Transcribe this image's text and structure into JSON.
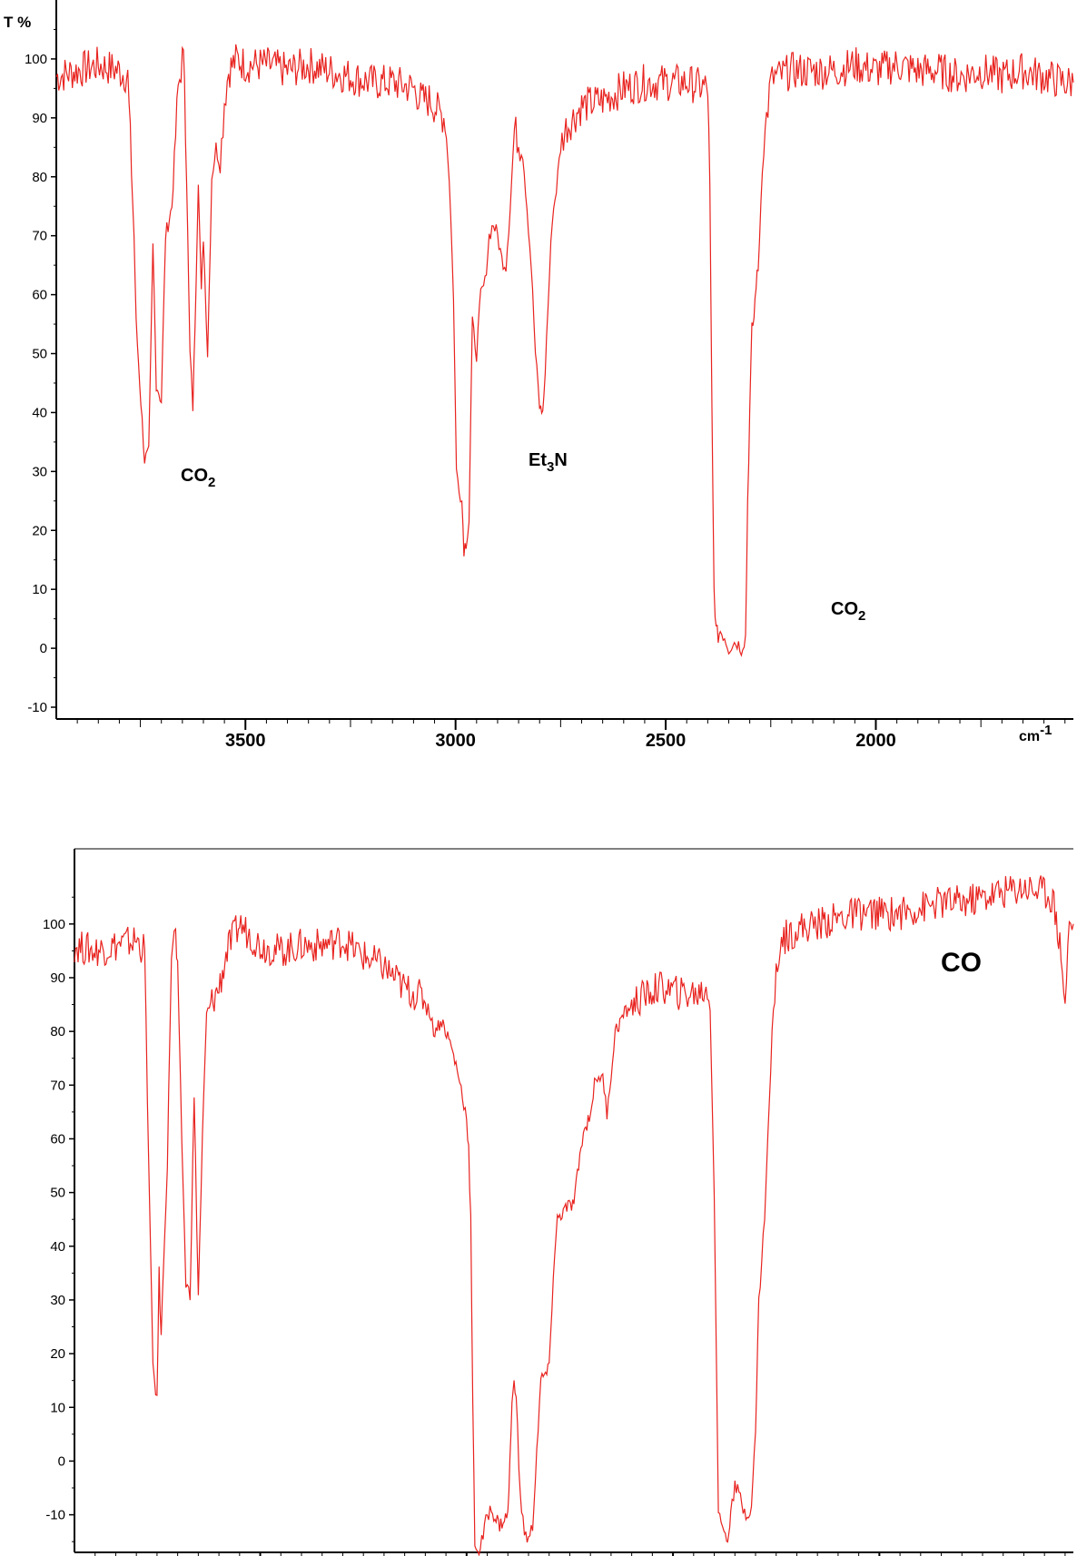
{
  "colors": {
    "trace": "#e8231f",
    "axis": "#000000",
    "background": "#ffffff"
  },
  "chart_data": [
    {
      "type": "line",
      "title": "",
      "ylabel": "T %",
      "xlabel": "cm-1",
      "x_reversed": true,
      "xlim": [
        3950,
        1530
      ],
      "ylim": [
        -12,
        110
      ],
      "xticks": [
        3500,
        3000,
        2500,
        2000
      ],
      "yticks": [
        -10,
        0,
        10,
        20,
        30,
        40,
        50,
        60,
        70,
        80,
        90,
        100
      ],
      "grid": false,
      "annotations": [
        {
          "text": "CO",
          "sub": "2",
          "x": 3710,
          "y": 29
        },
        {
          "text": "Et",
          "sub": "3",
          "after": "N",
          "x": 2920,
          "y": 31
        },
        {
          "text": "CO",
          "sub": "2",
          "x": 2230,
          "y": 6
        }
      ],
      "series": [
        {
          "x": [
            3950,
            3900,
            3850,
            3800,
            3780,
            3765,
            3760,
            3740,
            3730,
            3720,
            3712,
            3700,
            3690,
            3675,
            3660,
            3650,
            3645,
            3640,
            3632,
            3625,
            3620,
            3612,
            3605,
            3600,
            3590,
            3580,
            3570,
            3560,
            3550,
            3540,
            3520,
            3500,
            3450,
            3400,
            3350,
            3300,
            3250,
            3200,
            3150,
            3100,
            3080,
            3060,
            3040,
            3025,
            3015,
            3005,
            2998,
            2985,
            2980,
            2975,
            2968,
            2960,
            2950,
            2940,
            2930,
            2920,
            2910,
            2900,
            2890,
            2880,
            2870,
            2860,
            2850,
            2840,
            2830,
            2820,
            2810,
            2800,
            2795,
            2790,
            2780,
            2770,
            2760,
            2750,
            2740,
            2720,
            2700,
            2650,
            2600,
            2550,
            2500,
            2450,
            2400,
            2395,
            2390,
            2385,
            2380,
            2375,
            2370,
            2360,
            2350,
            2340,
            2330,
            2320,
            2310,
            2305,
            2300,
            2295,
            2290,
            2285,
            2280,
            2270,
            2260,
            2250,
            2240,
            2230,
            2200,
            2150,
            2100,
            2050,
            2000,
            1950,
            1900,
            1850,
            1800,
            1750,
            1700,
            1650,
            1600,
            1550,
            1530
          ],
          "y": [
            97,
            98,
            99,
            98,
            97,
            70,
            55,
            32,
            33,
            68,
            45,
            42,
            70,
            75,
            95,
            100,
            98,
            80,
            50,
            41,
            55,
            80,
            60,
            70,
            50,
            80,
            85,
            82,
            93,
            98,
            100,
            99,
            99,
            98,
            99,
            98,
            97,
            96,
            96,
            95,
            93,
            93,
            91,
            90,
            80,
            60,
            30,
            25,
            17,
            18,
            22,
            55,
            50,
            60,
            62,
            70,
            72,
            70,
            66,
            65,
            75,
            88,
            86,
            84,
            75,
            65,
            50,
            41,
            40,
            42,
            58,
            73,
            78,
            85,
            88,
            90,
            92,
            93,
            95,
            96,
            96,
            96,
            95,
            78,
            40,
            10,
            3,
            2,
            3,
            2,
            0,
            1,
            1,
            0,
            2,
            25,
            40,
            54,
            56,
            62,
            64,
            82,
            90,
            96,
            97,
            97,
            98,
            98,
            98,
            99,
            98,
            99,
            98,
            98,
            97,
            98,
            97,
            98,
            97,
            96,
            96
          ]
        }
      ]
    },
    {
      "type": "line",
      "title": "",
      "x_reversed": true,
      "xlim": [
        3950,
        1530
      ],
      "ylim": [
        -17,
        114
      ],
      "yticks": [
        -10,
        0,
        10,
        20,
        30,
        40,
        50,
        60,
        70,
        80,
        90,
        100
      ],
      "grid": false,
      "annotations": [
        {
          "text": "CO",
          "x": 1950,
          "y": 91
        }
      ],
      "series": [
        {
          "x": [
            3950,
            3900,
            3850,
            3800,
            3780,
            3770,
            3760,
            3750,
            3745,
            3740,
            3732,
            3725,
            3715,
            3705,
            3700,
            3690,
            3680,
            3670,
            3660,
            3650,
            3640,
            3630,
            3620,
            3600,
            3580,
            3550,
            3500,
            3450,
            3400,
            3350,
            3300,
            3250,
            3200,
            3150,
            3100,
            3090,
            3080,
            3060,
            3040,
            3020,
            3010,
            3000,
            2995,
            2990,
            2985,
            2980,
            2970,
            2960,
            2950,
            2940,
            2920,
            2900,
            2895,
            2890,
            2885,
            2880,
            2870,
            2860,
            2850,
            2840,
            2830,
            2820,
            2800,
            2790,
            2780,
            2760,
            2740,
            2720,
            2700,
            2690,
            2680,
            2670,
            2660,
            2650,
            2640,
            2620,
            2600,
            2580,
            2560,
            2540,
            2520,
            2480,
            2440,
            2420,
            2410,
            2400,
            2390,
            2380,
            2370,
            2365,
            2360,
            2350,
            2340,
            2330,
            2320,
            2310,
            2300,
            2292,
            2285,
            2278,
            2270,
            2260,
            2250,
            2240,
            2220,
            2200,
            2150,
            2100,
            2050,
            2000,
            1950,
            1900,
            1850,
            1800,
            1750,
            1700,
            1650,
            1600,
            1580,
            1560,
            1550,
            1540,
            1530
          ],
          "y": [
            96,
            95,
            96,
            97,
            95,
            55,
            18,
            11,
            35,
            23,
            42,
            55,
            95,
            98,
            90,
            60,
            33,
            31,
            68,
            31,
            60,
            83,
            85,
            88,
            95,
            100,
            96,
            95,
            96,
            96,
            97,
            94,
            92,
            88,
            86,
            84,
            80,
            82,
            78,
            72,
            68,
            64,
            58,
            45,
            10,
            -15,
            -17,
            -14,
            -10,
            -9,
            -12,
            -10,
            0,
            10,
            16,
            12,
            -7,
            -13,
            -15,
            -12,
            2,
            15,
            17,
            35,
            45,
            47,
            48,
            60,
            65,
            70,
            72,
            71,
            65,
            72,
            80,
            83,
            85,
            86,
            87,
            88,
            88,
            87,
            87,
            88,
            85,
            50,
            -10,
            -12,
            -14,
            -15,
            -8,
            -5,
            -6,
            -9,
            -10,
            -8,
            5,
            30,
            37,
            46,
            60,
            80,
            90,
            97,
            98,
            99,
            100,
            101,
            102,
            102,
            102,
            103,
            104,
            104,
            105,
            106,
            107,
            106,
            105,
            95,
            85,
            100,
            100
          ]
        }
      ]
    }
  ]
}
